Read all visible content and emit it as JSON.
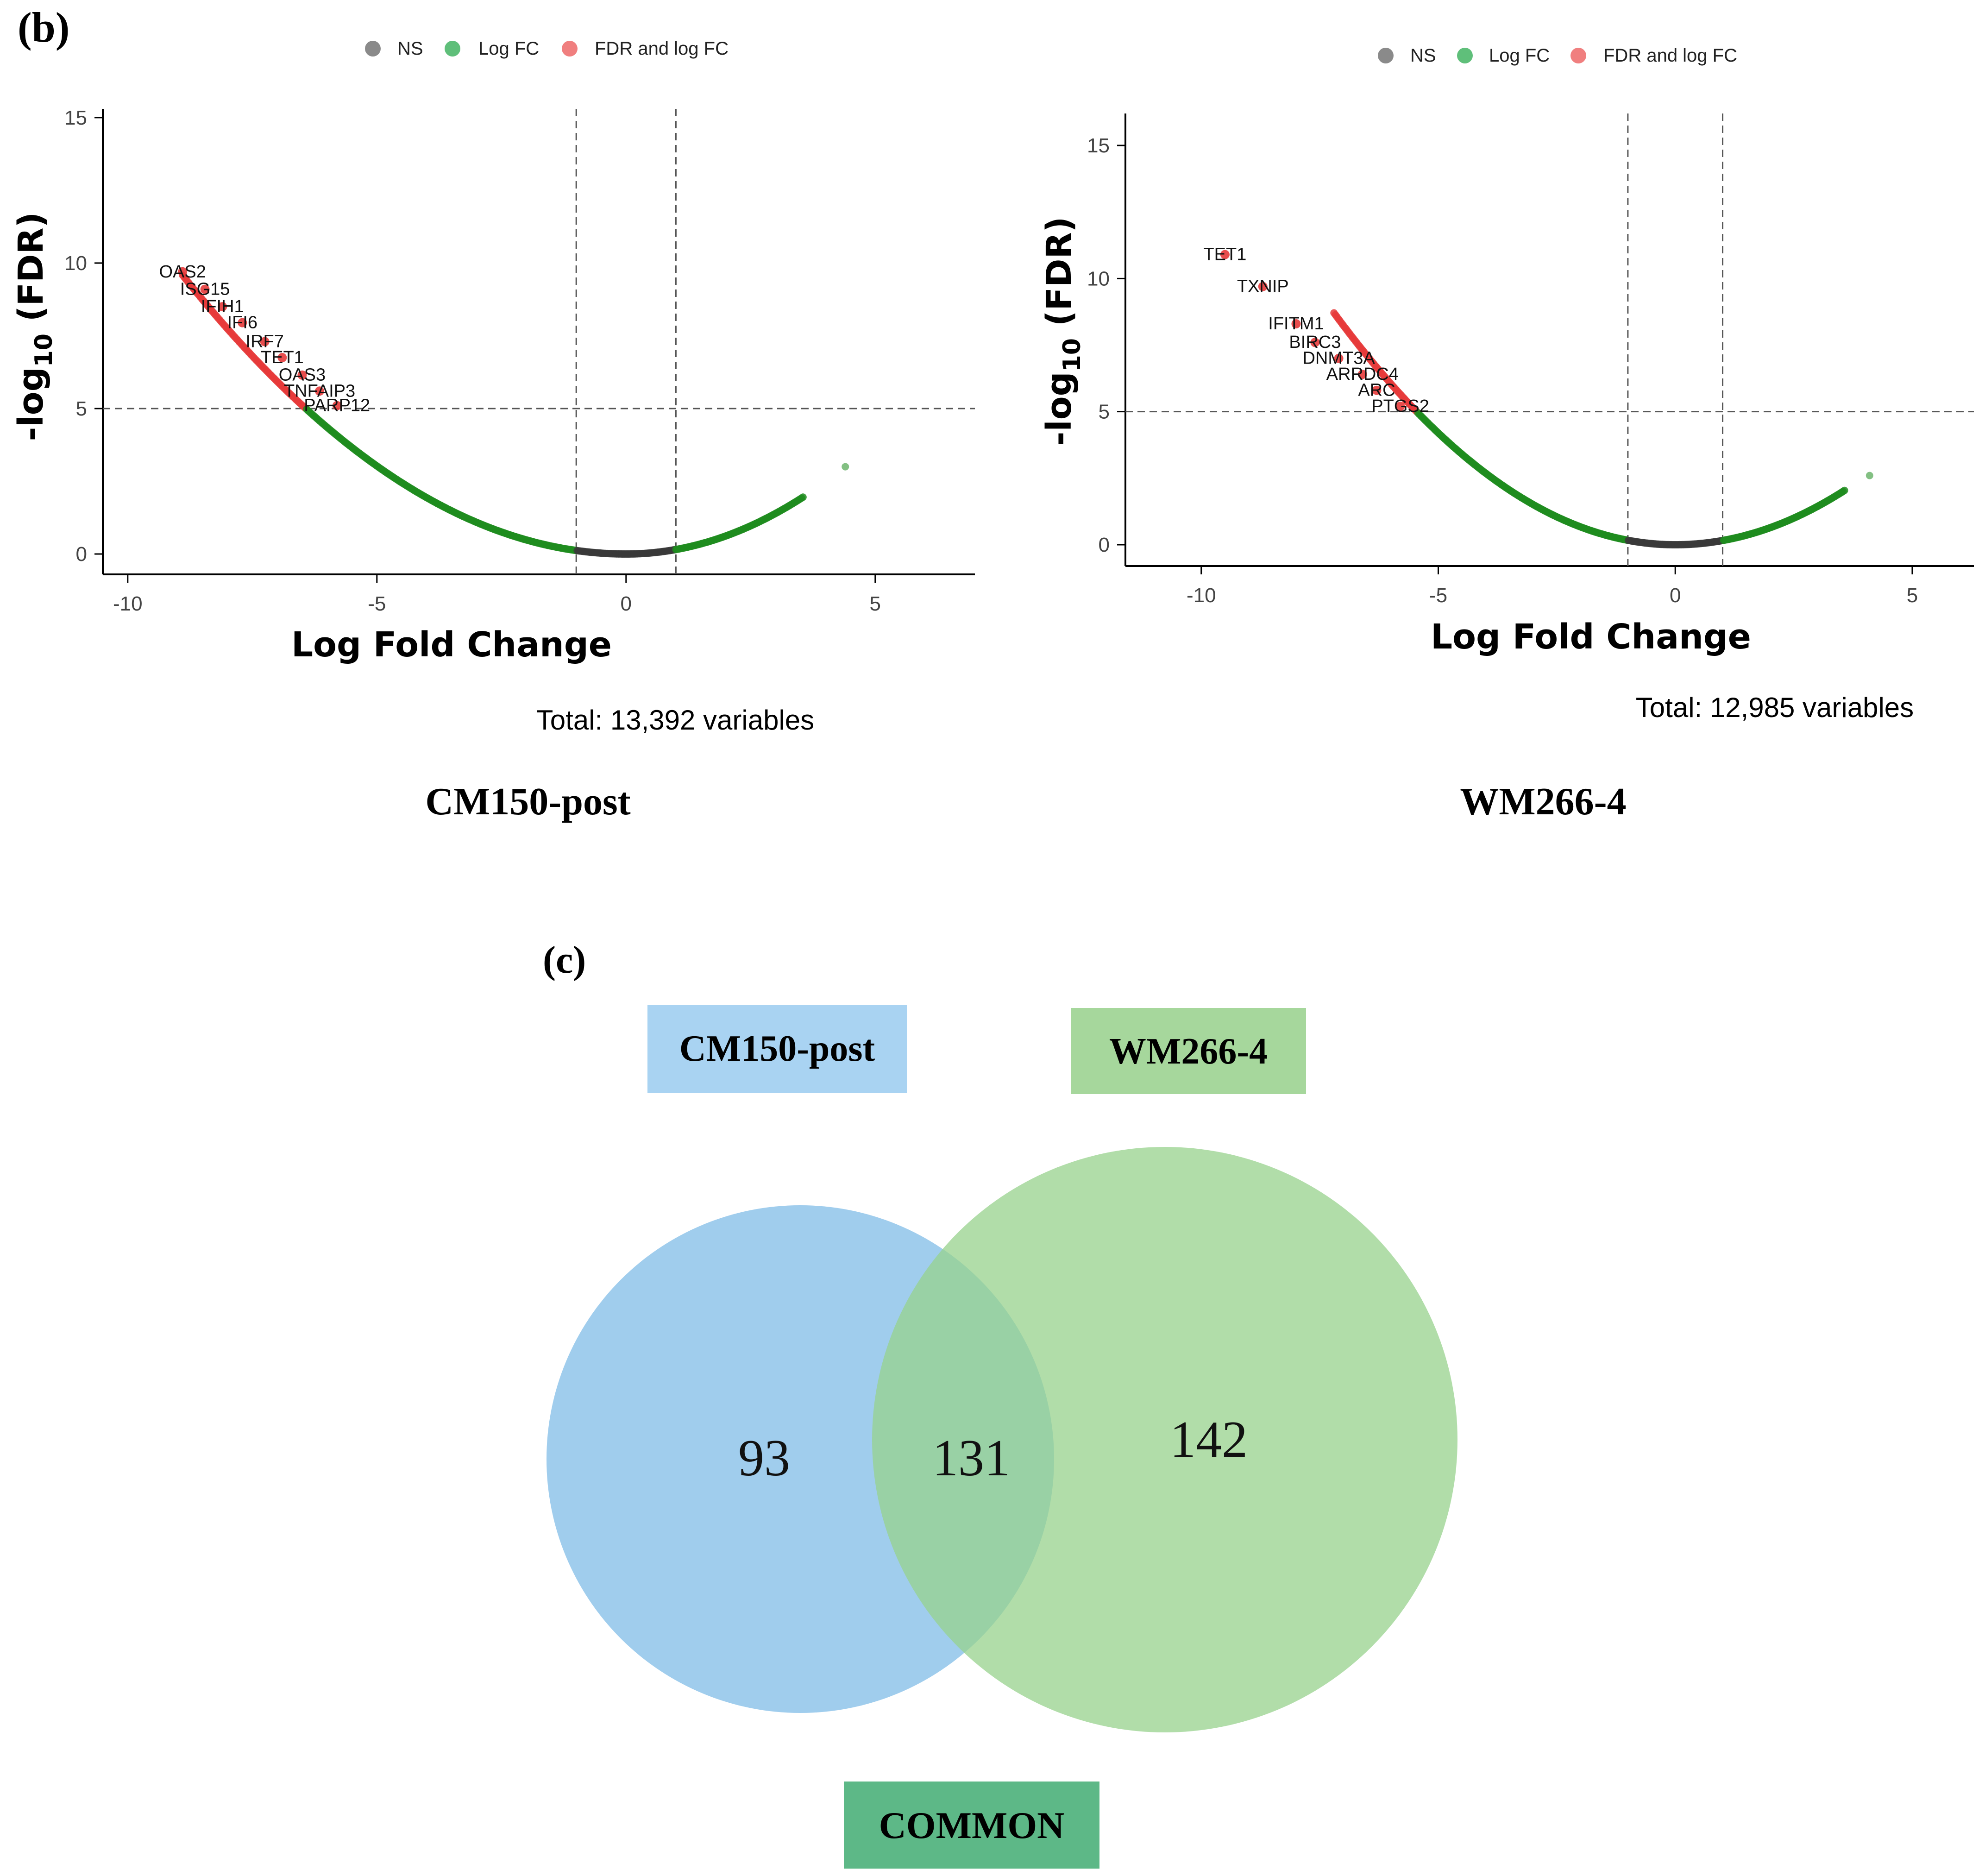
{
  "panel_b_label": "(b)",
  "panel_c_label": "(c)",
  "legend": {
    "items": [
      {
        "label": "NS",
        "color": "#8a8a8a"
      },
      {
        "label": "Log FC",
        "color": "#5fbf7a"
      },
      {
        "label": "FDR and log FC",
        "color": "#f07f7f"
      }
    ]
  },
  "axis_titles": {
    "x": "Log Fold Change",
    "y_prefix": "-log",
    "y_sub": "10",
    "y_suffix": " (FDR)"
  },
  "colors": {
    "ns": "#3a3a3a",
    "logfc": "#1e8c1e",
    "fdr": "#e63a3a",
    "venn_blue": "#8fc4ea",
    "venn_green": "#97d18c",
    "label_blue": "#a9d3f2",
    "label_green": "#a6d79c",
    "label_common": "#5db887"
  },
  "chart_data": [
    {
      "type": "scatter",
      "subtype": "volcano",
      "panel_title": "CM150-post",
      "caption": "Total: 13,392 variables",
      "xlabel": "Log Fold Change",
      "ylabel": "-log10 (FDR)",
      "xlim": [
        -10.5,
        7.0
      ],
      "ylim": [
        -0.7,
        15.3
      ],
      "xticks": [
        -10,
        -5,
        0,
        5
      ],
      "yticks": [
        0,
        5,
        10,
        15
      ],
      "fc_cutoffs": [
        -1,
        1
      ],
      "fdr_cutoff": 5,
      "curve": {
        "left_k": 0.121,
        "right_k": 0.155,
        "left_end": -8.9,
        "right_end": 3.55
      },
      "outliers": [
        {
          "x": 4.4,
          "y": 3.0
        }
      ],
      "labels": [
        {
          "gene": "OAS2",
          "x": -8.9,
          "y": 9.7
        },
        {
          "gene": "ISG15",
          "x": -8.45,
          "y": 9.1
        },
        {
          "gene": "IFIH1",
          "x": -8.1,
          "y": 8.5
        },
        {
          "gene": "IFI6",
          "x": -7.7,
          "y": 7.95
        },
        {
          "gene": "IRF7",
          "x": -7.25,
          "y": 7.3
        },
        {
          "gene": "TET1",
          "x": -6.9,
          "y": 6.75
        },
        {
          "gene": "OAS3",
          "x": -6.5,
          "y": 6.15
        },
        {
          "gene": "TNFAIP3",
          "x": -6.15,
          "y": 5.6
        },
        {
          "gene": "PARP12",
          "x": -5.8,
          "y": 5.1
        }
      ]
    },
    {
      "type": "scatter",
      "subtype": "volcano",
      "panel_title": "WM266-4",
      "caption": "Total: 12,985 variables",
      "xlabel": "Log Fold Change",
      "ylabel": "-log10 (FDR)",
      "xlim": [
        -11.6,
        6.3
      ],
      "ylim": [
        -0.8,
        16.2
      ],
      "xticks": [
        -10,
        -5,
        0,
        5
      ],
      "yticks": [
        0,
        5,
        10,
        15
      ],
      "fc_cutoffs": [
        -1,
        1
      ],
      "fdr_cutoff": 5,
      "curve": {
        "left_k": 0.168,
        "right_k": 0.16,
        "left_end": -7.2,
        "right_end": 3.6
      },
      "outliers": [
        {
          "x": 4.1,
          "y": 2.6
        }
      ],
      "labels": [
        {
          "gene": "TET1",
          "x": -9.5,
          "y": 10.9
        },
        {
          "gene": "TXNIP",
          "x": -8.7,
          "y": 9.7
        },
        {
          "gene": "IFITM1",
          "x": -8.0,
          "y": 8.3
        },
        {
          "gene": "BIRC3",
          "x": -7.6,
          "y": 7.6
        },
        {
          "gene": "DNMT3A",
          "x": -7.1,
          "y": 7.0
        },
        {
          "gene": "ARRDC4",
          "x": -6.6,
          "y": 6.4
        },
        {
          "gene": "ARC",
          "x": -6.3,
          "y": 5.8
        },
        {
          "gene": "PTGS2",
          "x": -5.8,
          "y": 5.2
        }
      ]
    },
    {
      "type": "venn",
      "title": "(c)",
      "sets": [
        {
          "name": "CM150-post",
          "only": 93
        },
        {
          "name": "WM266-4",
          "only": 142
        }
      ],
      "intersection": 131,
      "intersection_label": "COMMON"
    }
  ]
}
